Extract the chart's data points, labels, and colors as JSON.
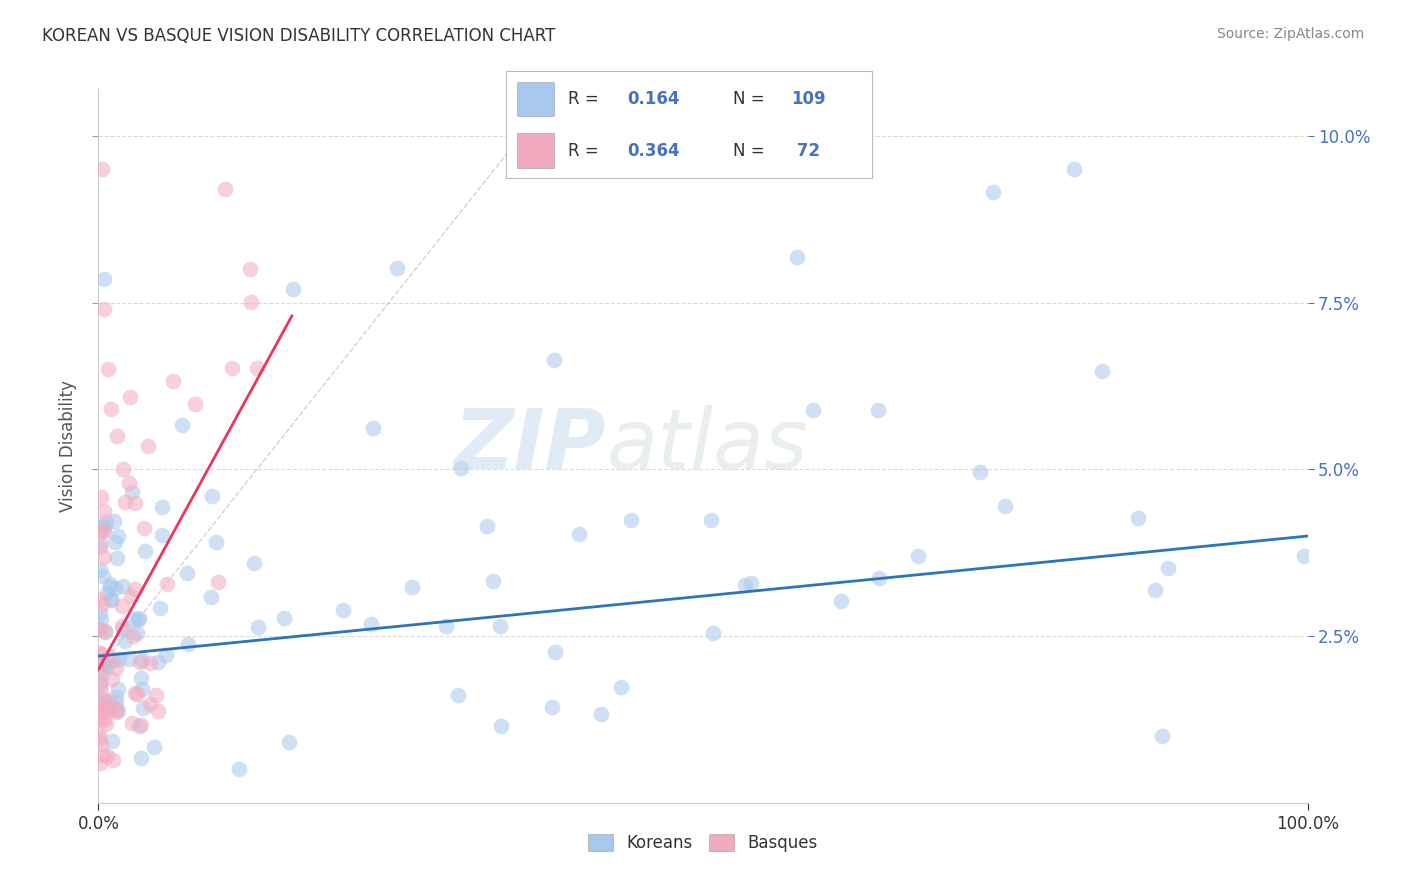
{
  "title": "KOREAN VS BASQUE VISION DISABILITY CORRELATION CHART",
  "source": "Source: ZipAtlas.com",
  "ylabel": "Vision Disability",
  "xlim": [
    0,
    1.0
  ],
  "ylim": [
    0.0,
    0.107
  ],
  "yticks": [
    0.025,
    0.05,
    0.075,
    0.1
  ],
  "ytick_labels": [
    "2.5%",
    "5.0%",
    "7.5%",
    "10.0%"
  ],
  "xtick_labels": [
    "0.0%",
    "100.0%"
  ],
  "korean_color": "#A8C8EE",
  "basque_color": "#F2AABF",
  "korean_line_color": "#2E75B6",
  "basque_line_color": "#E8365C",
  "dashed_line_color": "#C0C0C0",
  "watermark_color": "#C5D8EF",
  "legend_R_color": "#4472C4",
  "legend_text_color": "#333333",
  "background_color": "#FFFFFF",
  "grid_color": "#CCCCCC",
  "title_color": "#333333",
  "source_color": "#888888",
  "right_axis_color": "#4472C4",
  "point_size": 130,
  "point_alpha": 0.55,
  "korean_trend_start_x": 0.0,
  "korean_trend_start_y": 0.022,
  "korean_trend_end_x": 1.0,
  "korean_trend_end_y": 0.04,
  "basque_trend_start_x": 0.0,
  "basque_trend_start_y": 0.02,
  "basque_trend_end_x": 0.16,
  "basque_trend_end_y": 0.073
}
